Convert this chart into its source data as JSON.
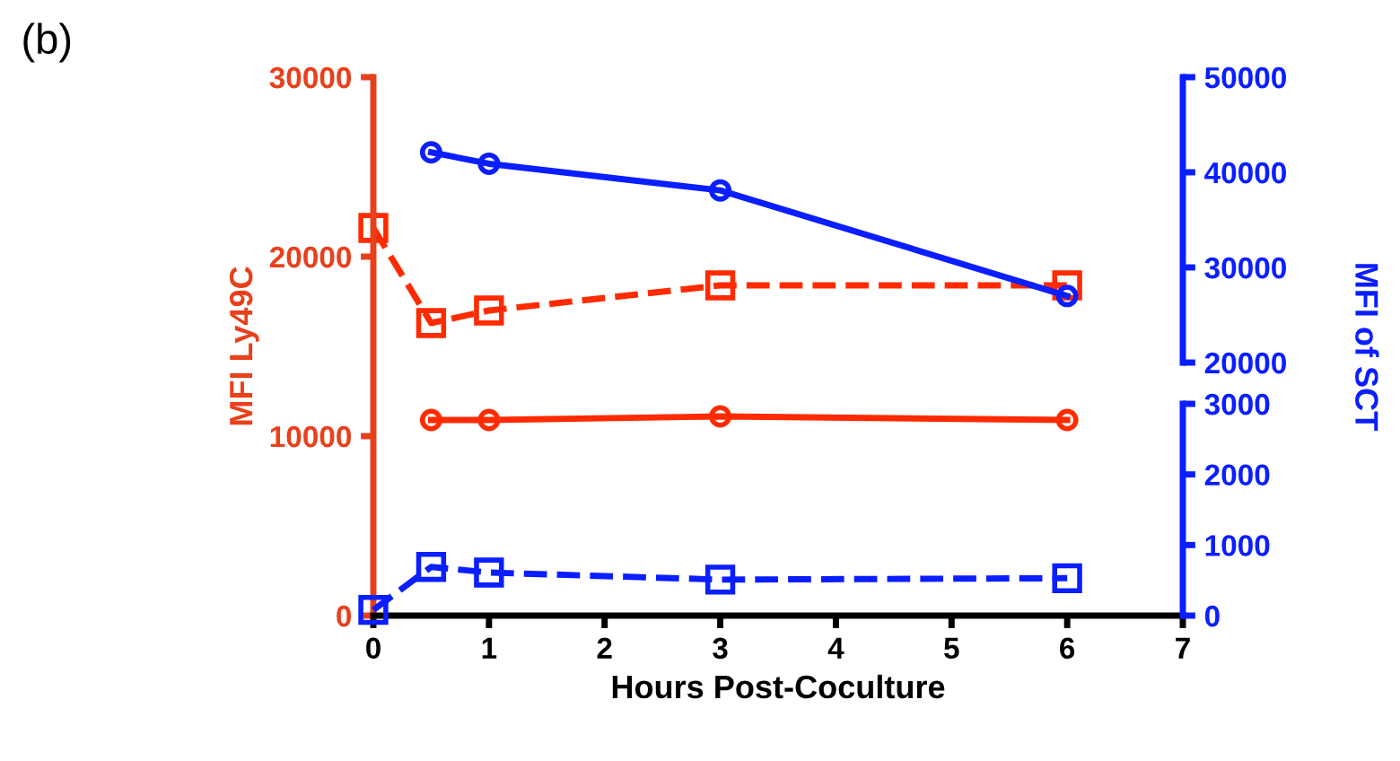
{
  "chart_data": {
    "type": "line",
    "title": "(b)",
    "xlabel": "Hours Post-Coculture",
    "ylabel": "MFI Ly49C",
    "y2label": "MFI of SCT",
    "xlim": [
      0,
      7
    ],
    "xticks": [
      0,
      1,
      2,
      3,
      4,
      5,
      6,
      7
    ],
    "ylim": [
      0,
      30000
    ],
    "yticks": [
      0,
      10000,
      20000,
      30000
    ],
    "y2lim": [
      0,
      3000
    ],
    "y2ticks": [
      0,
      1000,
      2000,
      3000
    ],
    "y3lim": [
      20000,
      50000
    ],
    "y3ticks": [
      20000,
      30000,
      40000,
      50000
    ],
    "grid": false,
    "legend": false,
    "series": [
      {
        "color": "#ff2a00",
        "axis": "y",
        "marker": "square",
        "line_style": "dashed",
        "x": [
          0,
          0.5,
          1,
          3,
          6
        ],
        "values": [
          21600,
          16300,
          17000,
          18400,
          18400
        ]
      },
      {
        "color": "#ff2a00",
        "axis": "y",
        "marker": "circle",
        "line_style": "solid",
        "x": [
          0.5,
          1,
          3,
          6
        ],
        "values": [
          10900,
          10900,
          11100,
          10900
        ]
      },
      {
        "color": "#0a1eff",
        "axis": "y3",
        "marker": "circle",
        "line_style": "solid",
        "x": [
          0.5,
          1,
          3,
          6
        ],
        "values": [
          42100,
          40900,
          38100,
          27000
        ]
      },
      {
        "color": "#0a1eff",
        "axis": "y2",
        "marker": "square",
        "line_style": "dashed",
        "x": [
          0,
          0.5,
          1,
          3,
          6
        ],
        "values": [
          80,
          690,
          610,
          510,
          530
        ]
      }
    ]
  }
}
